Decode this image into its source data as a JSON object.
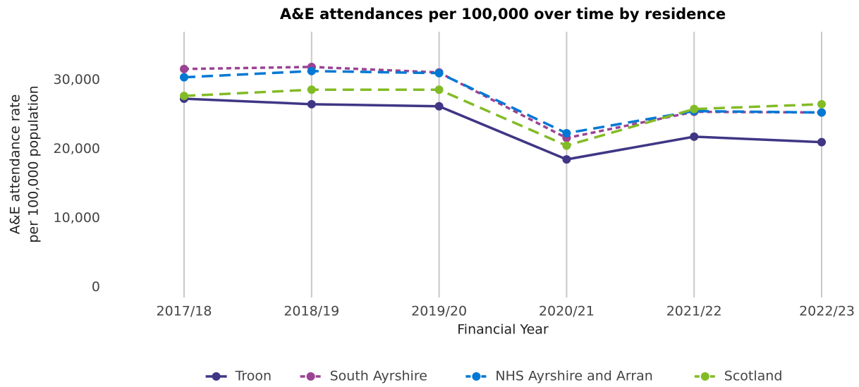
{
  "chart_data": {
    "type": "line",
    "title": "A&E attendances per 100,000 over time by residence",
    "xlabel": "Financial Year",
    "ylabel": [
      "A&E attendance rate",
      "per 100,000 population"
    ],
    "categories": [
      "2017/18",
      "2018/19",
      "2019/20",
      "2020/21",
      "2021/22",
      "2022/23"
    ],
    "series": [
      {
        "name": "Troon",
        "color": "#3f3685",
        "dash": "solid",
        "values": [
          27300,
          26500,
          26200,
          18500,
          21800,
          21000
        ]
      },
      {
        "name": "South Ayrshire",
        "color": "#9b4393",
        "dash": "dotted",
        "values": [
          31600,
          31900,
          31100,
          21600,
          25400,
          25300
        ]
      },
      {
        "name": "NHS Ayrshire and Arran",
        "color": "#0078d4",
        "dash": "dashed",
        "values": [
          30400,
          31300,
          31000,
          22300,
          25500,
          25300
        ]
      },
      {
        "name": "Scotland",
        "color": "#83bb26",
        "dash": "dashed",
        "values": [
          27700,
          28600,
          28600,
          20500,
          25800,
          26500
        ]
      }
    ],
    "ylim": [
      -1500,
      37000
    ],
    "yticks": [
      0,
      {
        "value": 10000,
        "label": "10,000"
      },
      {
        "value": 20000,
        "label": "20,000"
      },
      {
        "value": 30000,
        "label": "30,000"
      }
    ],
    "grid": "x",
    "legend": "bottom"
  }
}
